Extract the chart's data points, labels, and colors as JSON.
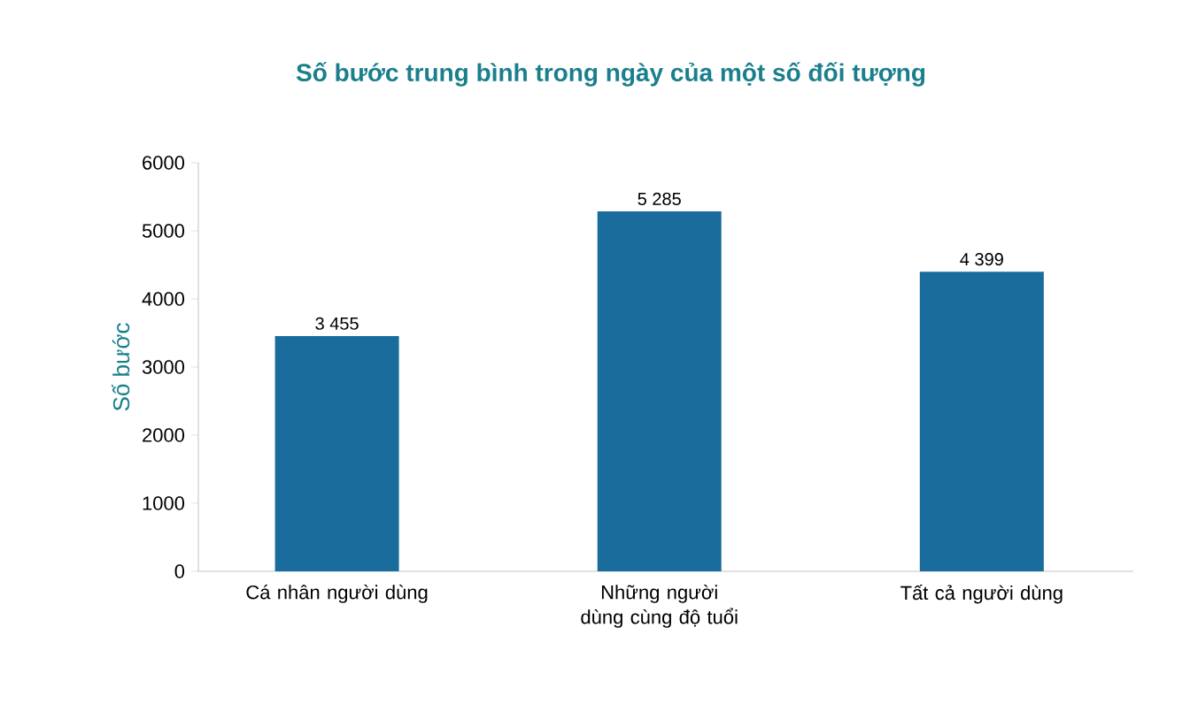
{
  "chart_data": {
    "type": "bar",
    "title": "Số bước trung bình trong ngày của một số đối tượng",
    "ylabel": "Số bước",
    "categories": [
      "Cá nhân người dùng",
      "Những người dùng cùng độ tuổi",
      "Tất cả người dùng"
    ],
    "values": [
      3455,
      5285,
      4399
    ],
    "value_labels": [
      "3 455",
      "5 285",
      "4 399"
    ],
    "color": "#1a6c9c",
    "ylim": [
      0,
      6000
    ],
    "yticks": [
      0,
      1000,
      2000,
      3000,
      4000,
      5000,
      6000
    ],
    "grid": false
  }
}
